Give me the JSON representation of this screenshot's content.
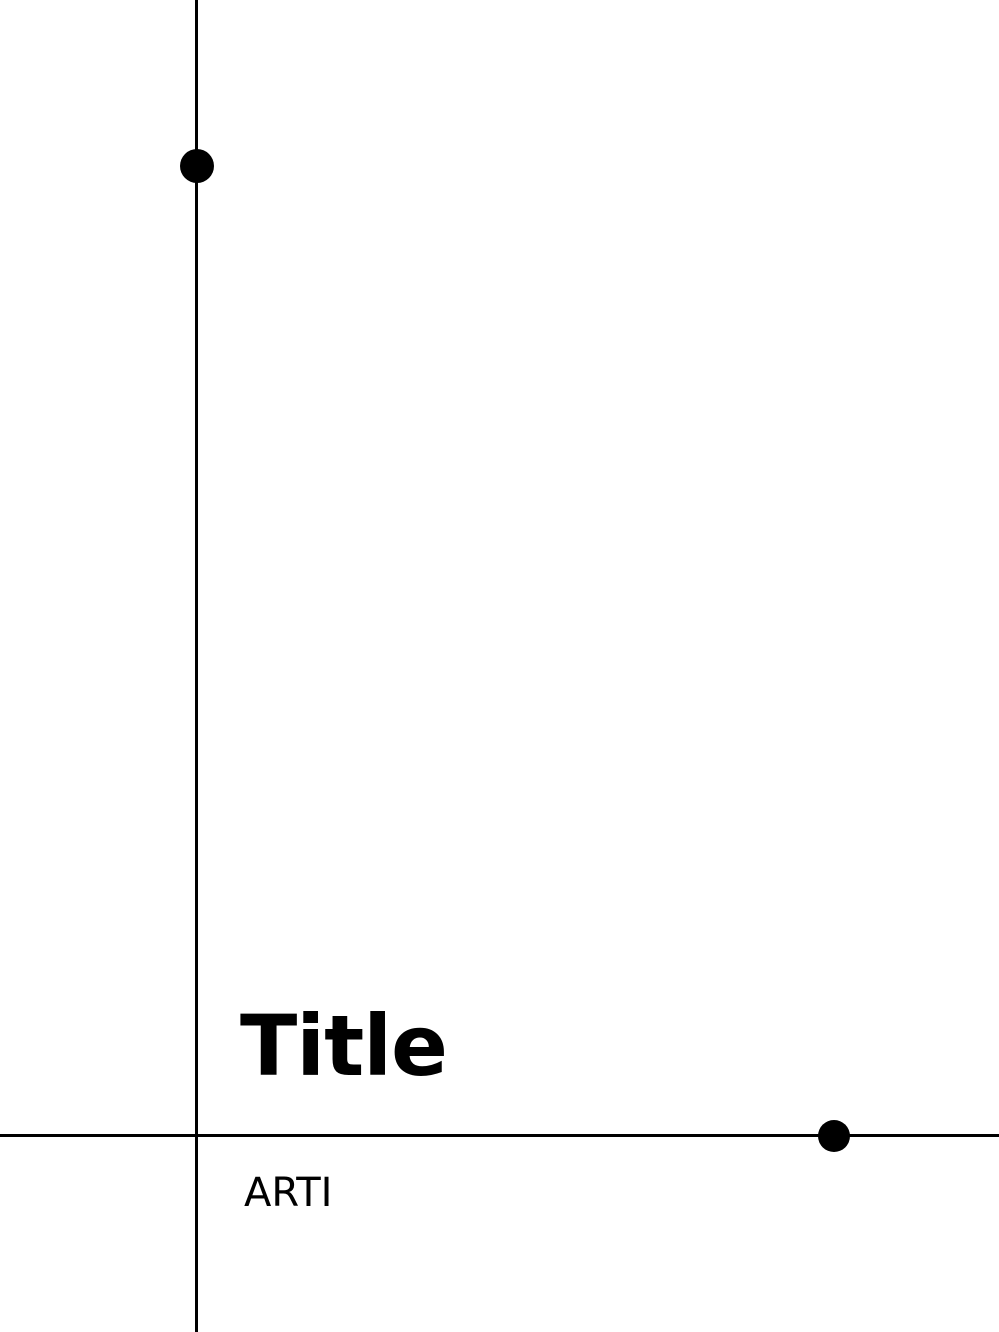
{
  "cover": {
    "title": "Title",
    "subtitle": "ARTI"
  },
  "colors": {
    "background": "#ffffff",
    "ink": "#000000"
  }
}
